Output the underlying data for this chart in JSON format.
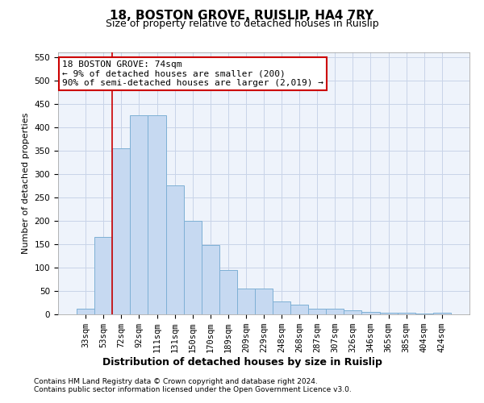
{
  "title1": "18, BOSTON GROVE, RUISLIP, HA4 7RY",
  "title2": "Size of property relative to detached houses in Ruislip",
  "xlabel": "Distribution of detached houses by size in Ruislip",
  "ylabel": "Number of detached properties",
  "categories": [
    "33sqm",
    "53sqm",
    "72sqm",
    "92sqm",
    "111sqm",
    "131sqm",
    "150sqm",
    "170sqm",
    "189sqm",
    "209sqm",
    "229sqm",
    "248sqm",
    "268sqm",
    "287sqm",
    "307sqm",
    "326sqm",
    "346sqm",
    "365sqm",
    "385sqm",
    "404sqm",
    "424sqm"
  ],
  "values": [
    12,
    165,
    355,
    425,
    425,
    275,
    200,
    148,
    95,
    55,
    55,
    27,
    20,
    12,
    12,
    8,
    5,
    3,
    3,
    1,
    4
  ],
  "bar_color": "#c6d9f1",
  "bar_edge_color": "#7eb0d5",
  "red_line_index": 2,
  "annotation_text": "18 BOSTON GROVE: 74sqm\n← 9% of detached houses are smaller (200)\n90% of semi-detached houses are larger (2,019) →",
  "annotation_box_color": "#ffffff",
  "annotation_edge_color": "#cc0000",
  "red_line_color": "#cc0000",
  "grid_color": "#c8d4e8",
  "background_color": "#eef3fb",
  "ylim": [
    0,
    560
  ],
  "yticks": [
    0,
    50,
    100,
    150,
    200,
    250,
    300,
    350,
    400,
    450,
    500,
    550
  ],
  "footnote1": "Contains HM Land Registry data © Crown copyright and database right 2024.",
  "footnote2": "Contains public sector information licensed under the Open Government Licence v3.0.",
  "title1_fontsize": 11,
  "title2_fontsize": 9,
  "xlabel_fontsize": 9,
  "ylabel_fontsize": 8,
  "tick_fontsize": 7.5,
  "annotation_fontsize": 8,
  "footnote_fontsize": 6.5
}
